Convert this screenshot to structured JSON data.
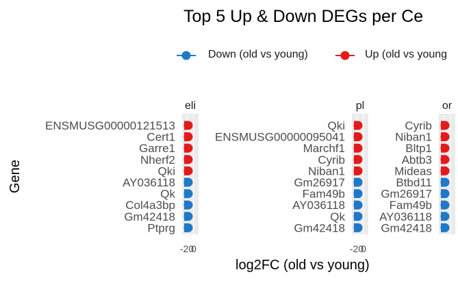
{
  "title": "Top 5 Up & Down DEGs per Ce",
  "legend": {
    "items": [
      {
        "label": "Down (old vs young)",
        "color": "#1F78C8"
      },
      {
        "label": "Up (old vs young",
        "color": "#E31A1C"
      }
    ]
  },
  "chart_data": {
    "type": "bar",
    "orientation": "horizontal",
    "facet_layout": "columns",
    "xlabel": "log2FC (old vs young)",
    "ylabel": "Gene",
    "colors": {
      "Down (old vs young)": "#1F78C8",
      "Up (old vs young)": "#E31A1C"
    },
    "facets": [
      {
        "strip": "eli",
        "xticks": [
          "-20",
          "0"
        ],
        "genes": [
          "ENSMUSG00000121513",
          "Cert1",
          "Garre1",
          "Nherf2",
          "Qki",
          "AY036118",
          "Qk",
          "Col4a3bp",
          "Gm42418",
          "Ptprg"
        ],
        "direction": [
          "Up",
          "Up",
          "Up",
          "Up",
          "Up",
          "Down",
          "Down",
          "Down",
          "Down",
          "Down"
        ]
      },
      {
        "strip": "pl",
        "xticks": [
          "-20",
          "0"
        ],
        "genes": [
          "Qki",
          "ENSMUSG00000095041",
          "Marchf1",
          "Cyrib",
          "Niban1",
          "Gm26917",
          "Fam49b",
          "AY036118",
          "Qk",
          "Gm42418"
        ],
        "direction": [
          "Up",
          "Up",
          "Up",
          "Up",
          "Up",
          "Down",
          "Down",
          "Down",
          "Down",
          "Down"
        ]
      },
      {
        "strip": "or",
        "xticks": [],
        "genes": [
          "Cyrib",
          "Niban1",
          "Bltp1",
          "Abtb3",
          "Mideas",
          "Btbd11",
          "Gm26917",
          "Fam49b",
          "AY036118",
          "Gm42418"
        ],
        "direction": [
          "Up",
          "Up",
          "Up",
          "Up",
          "Up",
          "Down",
          "Down",
          "Down",
          "Down",
          "Down"
        ]
      }
    ],
    "grid": true,
    "legend_position": "top"
  }
}
